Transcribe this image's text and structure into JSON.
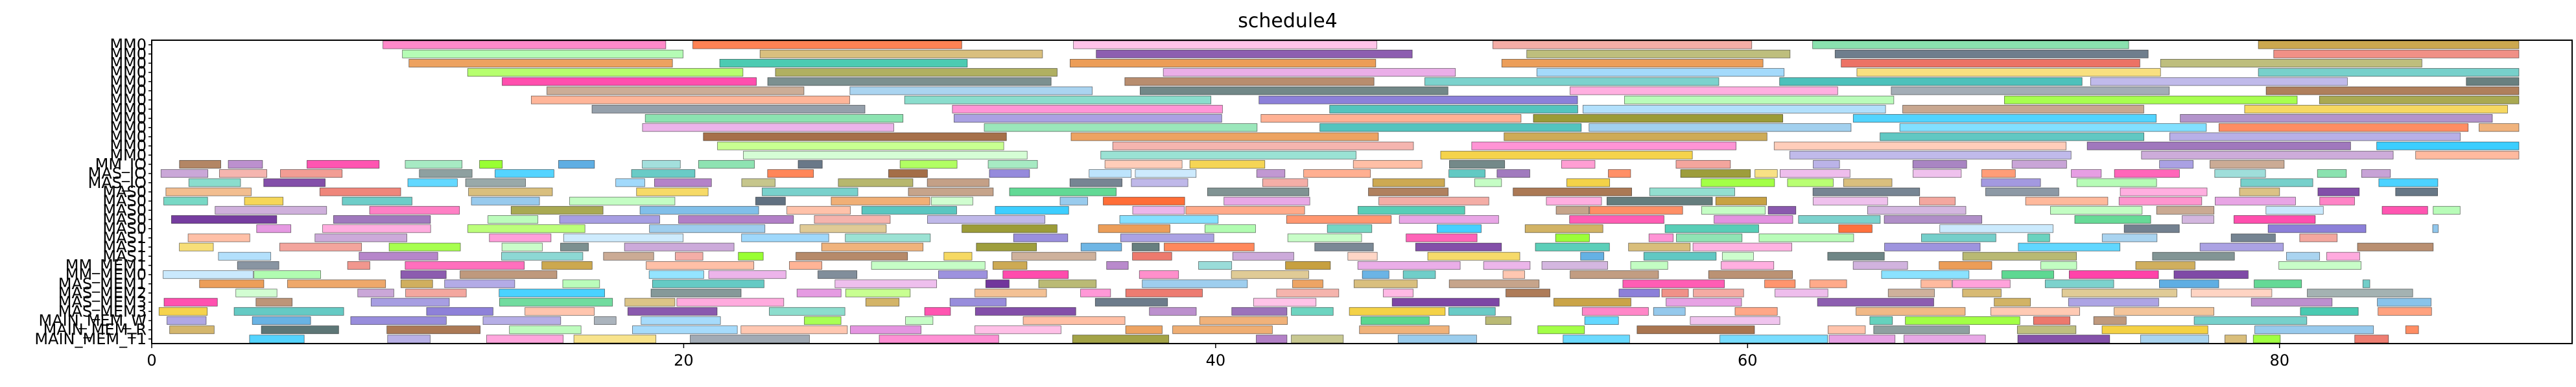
{
  "chart_data": {
    "type": "bar",
    "subtype": "gantt",
    "title": "schedule4",
    "xlabel": "",
    "ylabel": "",
    "xlim": [
      0,
      91
    ],
    "xticks": [
      0,
      20,
      40,
      60,
      80
    ],
    "grid": false,
    "legend": "none",
    "rows": [
      "MM0",
      "MM0",
      "MM0",
      "MM0",
      "MM0",
      "MM0",
      "MM0",
      "MM0",
      "MM0",
      "MM0",
      "MM0",
      "MM0",
      "MM0",
      "MM_IO",
      "MAS_IO",
      "MAS_IO",
      "MAS0",
      "MAS0",
      "MAS0",
      "MAS0",
      "MAS0",
      "MAS1",
      "MAS1",
      "MAS1",
      "MM_MEM1",
      "MM_MEM0",
      "MAS_MEM1",
      "MAS_MEM2",
      "MAS_MEM3",
      "MAS_MEM3",
      "MAIN_MEM_W",
      "MAIN_MEM_R",
      "MAIN_MEM_T1"
    ],
    "row_colors": [
      "#2ecc71",
      "#f5deb3",
      "#7f8c8d",
      "#1f6f3f",
      "#8e44ad",
      "#8b5a2b",
      "#c0392b",
      "#d63384",
      "#e67e22",
      "#1abc9c",
      "#e91e63",
      "#9b59b6",
      "#a93226",
      "#2c3e50",
      "#1e88e5",
      "#16a085",
      "#7f8c8d",
      "#e91e63",
      "#8b4513",
      "#e84393",
      "#2ecc71",
      "#1abc9c",
      "#8e44ad",
      "#00bcd4",
      "#8e44ad",
      "#e74c3c",
      "#1e88e5",
      "#6c3483",
      "#ff69b4",
      "#00e5ff",
      "#27ae60",
      "#ff4081",
      "#e74c3c"
    ],
    "palette": [
      "#2ecc71",
      "#3498db",
      "#9b59b6",
      "#e74c3c",
      "#f1c40f",
      "#1abc9c",
      "#e67e22",
      "#34495e",
      "#ff6ec7",
      "#7fff00",
      "#00bfff",
      "#ff4500",
      "#8b4513",
      "#808000",
      "#4b0082",
      "#ff1493",
      "#20b2aa",
      "#b8860b",
      "#6a5acd",
      "#ffa07a",
      "#2f4f4f",
      "#da70d6",
      "#87cefa",
      "#98fb98"
    ],
    "seed": 4
  }
}
